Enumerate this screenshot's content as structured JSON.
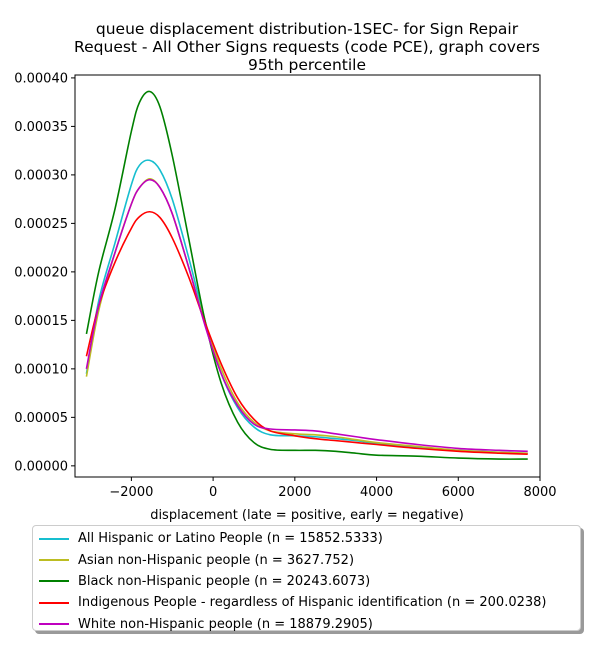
{
  "chart_data": {
    "type": "line",
    "title_lines": [
      "queue displacement distribution-1SEC-  for Sign Repair",
      "Request - All Other Signs  requests (code PCE), graph covers",
      "95th percentile"
    ],
    "xlabel": "displacement (late = positive, early = negative)",
    "ylabel": "",
    "xlim": [
      -3380,
      8000
    ],
    "ylim": [
      -1.15e-05,
      0.000403
    ],
    "xticks": [
      -2000,
      0,
      2000,
      4000,
      6000,
      8000
    ],
    "xtick_labels": [
      "−2000",
      "0",
      "2000",
      "4000",
      "6000",
      "8000"
    ],
    "yticks": [
      0.0,
      5e-05,
      0.0001,
      0.00015,
      0.0002,
      0.00025,
      0.0003,
      0.00035,
      0.0004
    ],
    "ytick_labels": [
      "0.00000",
      "0.00005",
      "0.00010",
      "0.00015",
      "0.00020",
      "0.00025",
      "0.00030",
      "0.00035",
      "0.00040"
    ],
    "grid": false,
    "legend_position": "below plot",
    "series": [
      {
        "name": "All Hispanic or Latino People (n = 15852.5333)",
        "color": "#17becf",
        "points": [
          [
            -3100,
            9.5e-05
          ],
          [
            -2800,
            0.00017
          ],
          [
            -2400,
            0.00023
          ],
          [
            -2000,
            0.00029
          ],
          [
            -1800,
            0.00031
          ],
          [
            -1550,
            0.000315
          ],
          [
            -1300,
            0.000305
          ],
          [
            -1000,
            0.000275
          ],
          [
            -600,
            0.000215
          ],
          [
            -200,
            0.00015
          ],
          [
            200,
            9.5e-05
          ],
          [
            600,
            6e-05
          ],
          [
            1000,
            4e-05
          ],
          [
            1400,
            3.2e-05
          ],
          [
            2000,
            3.1e-05
          ],
          [
            2500,
            3e-05
          ],
          [
            3000,
            2.8e-05
          ],
          [
            3500,
            2.6e-05
          ],
          [
            4000,
            2.3e-05
          ],
          [
            5000,
            1.9e-05
          ],
          [
            6000,
            1.6e-05
          ],
          [
            7000,
            1.4e-05
          ],
          [
            7700,
            1.3e-05
          ]
        ]
      },
      {
        "name": "Asian non-Hispanic people (n = 3627.752)",
        "color": "#bcbd22",
        "points": [
          [
            -3100,
            9.2e-05
          ],
          [
            -2800,
            0.00016
          ],
          [
            -2400,
            0.00022
          ],
          [
            -2000,
            0.00027
          ],
          [
            -1800,
            0.000287
          ],
          [
            -1550,
            0.000296
          ],
          [
            -1300,
            0.000287
          ],
          [
            -1000,
            0.00026
          ],
          [
            -600,
            0.000205
          ],
          [
            -200,
            0.000148
          ],
          [
            200,
            0.0001
          ],
          [
            600,
            6.5e-05
          ],
          [
            1000,
            4.5e-05
          ],
          [
            1400,
            3.6e-05
          ],
          [
            2000,
            3.3e-05
          ],
          [
            2500,
            3.2e-05
          ],
          [
            3000,
            3e-05
          ],
          [
            3500,
            2.7e-05
          ],
          [
            4000,
            2.4e-05
          ],
          [
            5000,
            2e-05
          ],
          [
            6000,
            1.6e-05
          ],
          [
            7000,
            1.4e-05
          ],
          [
            7700,
            1.3e-05
          ]
        ]
      },
      {
        "name": "Black non-Hispanic people (n = 20243.6073)",
        "color": "#008000",
        "points": [
          [
            -3100,
            0.000136
          ],
          [
            -2800,
            0.0002
          ],
          [
            -2400,
            0.000265
          ],
          [
            -2000,
            0.000345
          ],
          [
            -1800,
            0.000375
          ],
          [
            -1550,
            0.000386
          ],
          [
            -1300,
            0.00037
          ],
          [
            -1000,
            0.00032
          ],
          [
            -600,
            0.000235
          ],
          [
            -200,
            0.00015
          ],
          [
            200,
            8.5e-05
          ],
          [
            600,
            4.5e-05
          ],
          [
            1000,
            2.4e-05
          ],
          [
            1400,
            1.7e-05
          ],
          [
            2000,
            1.6e-05
          ],
          [
            2500,
            1.6e-05
          ],
          [
            3000,
            1.5e-05
          ],
          [
            3500,
            1.3e-05
          ],
          [
            4000,
            1.1e-05
          ],
          [
            5000,
            1e-05
          ],
          [
            6000,
            8e-06
          ],
          [
            7000,
            7e-06
          ],
          [
            7700,
            7e-06
          ]
        ]
      },
      {
        "name": "Indigenous People - regardless of Hispanic identification (n = 200.0238)",
        "color": "#ff0000",
        "points": [
          [
            -3100,
            0.000113
          ],
          [
            -2800,
            0.000165
          ],
          [
            -2400,
            0.00021
          ],
          [
            -2000,
            0.000245
          ],
          [
            -1800,
            0.000257
          ],
          [
            -1550,
            0.000262
          ],
          [
            -1300,
            0.000256
          ],
          [
            -1000,
            0.000235
          ],
          [
            -600,
            0.000195
          ],
          [
            -200,
            0.000148
          ],
          [
            200,
            0.000105
          ],
          [
            600,
            7e-05
          ],
          [
            1000,
            4.8e-05
          ],
          [
            1400,
            3.6e-05
          ],
          [
            2000,
            3.1e-05
          ],
          [
            2500,
            2.8e-05
          ],
          [
            3000,
            2.6e-05
          ],
          [
            3500,
            2.4e-05
          ],
          [
            4000,
            2.2e-05
          ],
          [
            5000,
            1.8e-05
          ],
          [
            6000,
            1.5e-05
          ],
          [
            7000,
            1.3e-05
          ],
          [
            7700,
            1.2e-05
          ]
        ]
      },
      {
        "name": "White non-Hispanic people (n = 18879.2905)",
        "color": "#bf00bf",
        "points": [
          [
            -3100,
            0.0001
          ],
          [
            -2800,
            0.000165
          ],
          [
            -2400,
            0.00022
          ],
          [
            -2000,
            0.00027
          ],
          [
            -1800,
            0.000287
          ],
          [
            -1550,
            0.000295
          ],
          [
            -1300,
            0.000287
          ],
          [
            -1000,
            0.00026
          ],
          [
            -600,
            0.000205
          ],
          [
            -200,
            0.000145
          ],
          [
            200,
            9.5e-05
          ],
          [
            600,
            6.2e-05
          ],
          [
            1000,
            4.3e-05
          ],
          [
            1400,
            3.8e-05
          ],
          [
            2000,
            3.7e-05
          ],
          [
            2500,
            3.6e-05
          ],
          [
            3000,
            3.3e-05
          ],
          [
            3500,
            3e-05
          ],
          [
            4000,
            2.7e-05
          ],
          [
            5000,
            2.2e-05
          ],
          [
            6000,
            1.8e-05
          ],
          [
            7000,
            1.6e-05
          ],
          [
            7700,
            1.5e-05
          ]
        ]
      }
    ]
  }
}
